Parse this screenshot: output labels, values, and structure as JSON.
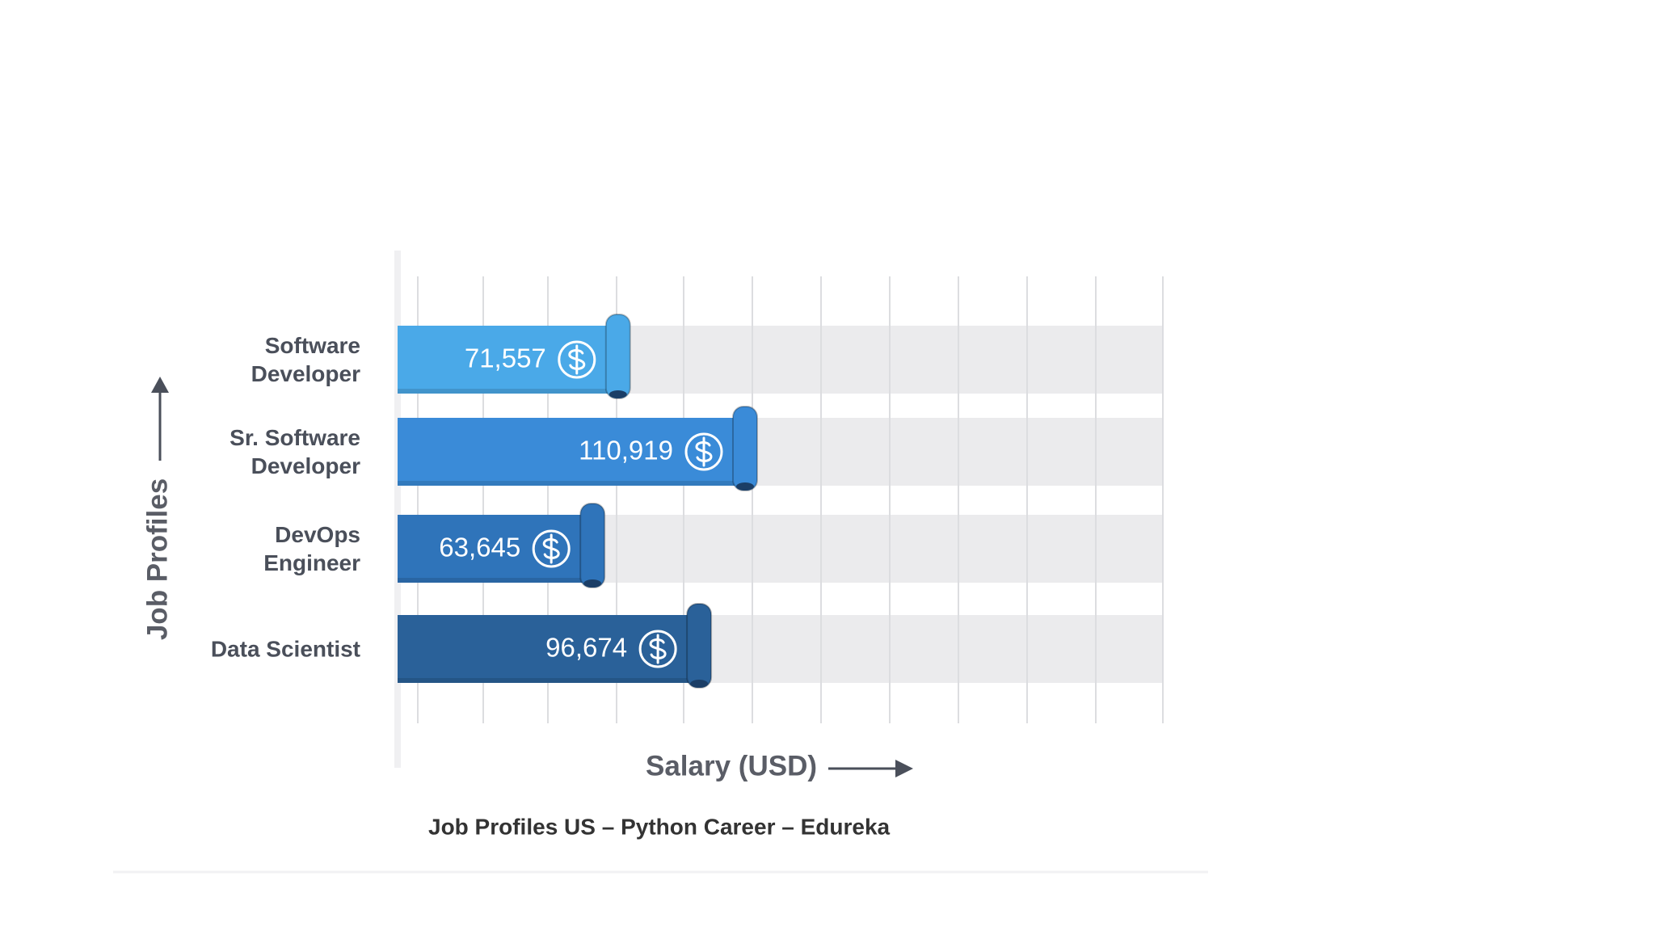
{
  "chart_data": {
    "type": "bar",
    "orientation": "horizontal",
    "title": "Job Profiles US – Python Career – Edureka",
    "x_label": "Salary (USD)",
    "y_label": "Job Profiles",
    "categories": [
      "Software Developer",
      "Sr. Software Developer",
      "DevOps Engineer",
      "Data Scientist"
    ],
    "values": [
      71557,
      110919,
      63645,
      96674
    ],
    "value_labels": [
      "71,557",
      "110,919",
      "63,645",
      "96,674"
    ],
    "colors": [
      "#4aa9e8",
      "#3a8bd8",
      "#2f74ba",
      "#2a6199"
    ],
    "grid": true
  }
}
